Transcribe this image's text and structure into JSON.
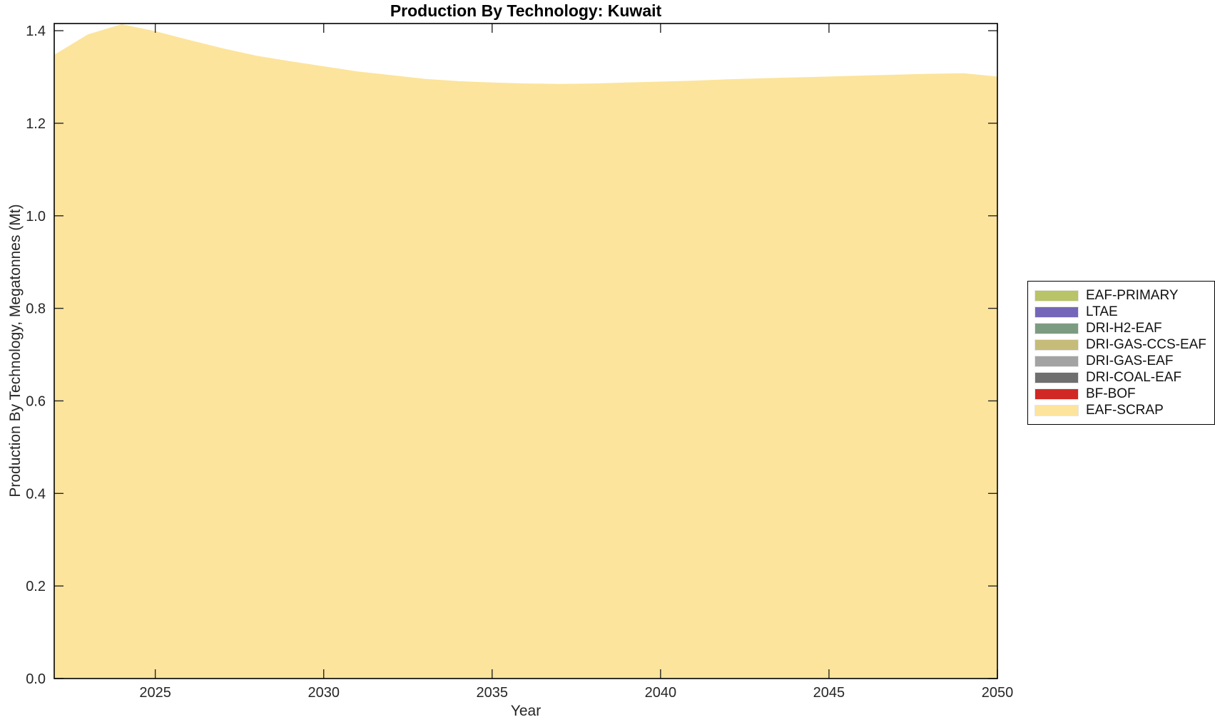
{
  "chart_data": {
    "type": "area",
    "stacked": true,
    "title": "Production By Technology: Kuwait",
    "xlabel": "Year",
    "ylabel": "Production By Technology, Megatonnes (Mt)",
    "grid": false,
    "legend_position": "outside-right",
    "xlim": [
      2022,
      2050
    ],
    "ylim": [
      0,
      1.4155
    ],
    "x_ticks": [
      2025,
      2030,
      2035,
      2040,
      2045,
      2050
    ],
    "y_ticks": [
      0.0,
      0.2,
      0.4,
      0.6,
      0.8,
      1.0,
      1.2,
      1.4
    ],
    "axis_color": "#262626",
    "x": [
      2022,
      2023,
      2024,
      2025,
      2026,
      2027,
      2028,
      2029,
      2030,
      2031,
      2032,
      2033,
      2034,
      2035,
      2036,
      2037,
      2038,
      2039,
      2040,
      2041,
      2042,
      2043,
      2044,
      2045,
      2046,
      2047,
      2048,
      2049,
      2050
    ],
    "series": [
      {
        "name": "EAF-PRIMARY",
        "color": "#b9c367",
        "values": [
          0,
          0,
          0,
          0,
          0,
          0,
          0,
          0,
          0,
          0,
          0,
          0,
          0,
          0,
          0,
          0,
          0,
          0,
          0,
          0,
          0,
          0,
          0,
          0,
          0,
          0,
          0,
          0,
          0
        ]
      },
      {
        "name": "LTAE",
        "color": "#7467ba",
        "values": [
          0,
          0,
          0,
          0,
          0,
          0,
          0,
          0,
          0,
          0,
          0,
          0,
          0,
          0,
          0,
          0,
          0,
          0,
          0,
          0,
          0,
          0,
          0,
          0,
          0,
          0,
          0,
          0,
          0
        ]
      },
      {
        "name": "DRI-H2-EAF",
        "color": "#7c9c81",
        "values": [
          0,
          0,
          0,
          0,
          0,
          0,
          0,
          0,
          0,
          0,
          0,
          0,
          0,
          0,
          0,
          0,
          0,
          0,
          0,
          0,
          0,
          0,
          0,
          0,
          0,
          0,
          0,
          0,
          0
        ]
      },
      {
        "name": "DRI-GAS-CCS-EAF",
        "color": "#c5bc7a",
        "values": [
          0,
          0,
          0,
          0,
          0,
          0,
          0,
          0,
          0,
          0,
          0,
          0,
          0,
          0,
          0,
          0,
          0,
          0,
          0,
          0,
          0,
          0,
          0,
          0,
          0,
          0,
          0,
          0,
          0
        ]
      },
      {
        "name": "DRI-GAS-EAF",
        "color": "#a3a3a3",
        "values": [
          0,
          0,
          0,
          0,
          0,
          0,
          0,
          0,
          0,
          0,
          0,
          0,
          0,
          0,
          0,
          0,
          0,
          0,
          0,
          0,
          0,
          0,
          0,
          0,
          0,
          0,
          0,
          0,
          0
        ]
      },
      {
        "name": "DRI-COAL-EAF",
        "color": "#6f6f6f",
        "values": [
          0,
          0,
          0,
          0,
          0,
          0,
          0,
          0,
          0,
          0,
          0,
          0,
          0,
          0,
          0,
          0,
          0,
          0,
          0,
          0,
          0,
          0,
          0,
          0,
          0,
          0,
          0,
          0,
          0
        ]
      },
      {
        "name": "BF-BOF",
        "color": "#d02824",
        "values": [
          0,
          0,
          0,
          0,
          0,
          0,
          0,
          0,
          0,
          0,
          0,
          0,
          0,
          0,
          0,
          0,
          0,
          0,
          0,
          0,
          0,
          0,
          0,
          0,
          0,
          0,
          0,
          0,
          0
        ]
      },
      {
        "name": "EAF-SCRAP",
        "color": "#fce49c",
        "values": [
          1.348,
          1.392,
          1.414,
          1.399,
          1.38,
          1.362,
          1.346,
          1.334,
          1.323,
          1.312,
          1.304,
          1.296,
          1.291,
          1.288,
          1.286,
          1.285,
          1.286,
          1.288,
          1.29,
          1.292,
          1.295,
          1.297,
          1.299,
          1.301,
          1.303,
          1.305,
          1.307,
          1.308,
          1.301
        ]
      }
    ]
  }
}
